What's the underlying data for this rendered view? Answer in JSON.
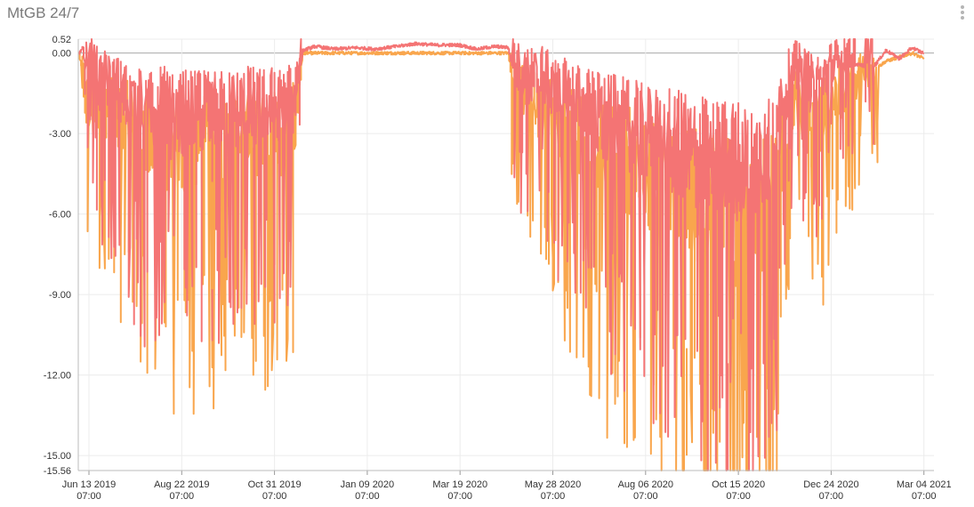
{
  "header": {
    "title": "MtGB 24/7",
    "menu_icon": "more-vertical-icon"
  },
  "chart_data": {
    "type": "line",
    "title": "MtGB 24/7",
    "xlabel": "",
    "ylabel": "",
    "ylim": [
      -15.56,
      0.52
    ],
    "grid": true,
    "legend": "none",
    "y_ticks": [
      "0.52",
      "0.00",
      "-3.00",
      "-6.00",
      "-9.00",
      "-12.00",
      "-15.00",
      "-15.56"
    ],
    "y_tick_values": [
      0.52,
      0.0,
      -3.0,
      -6.0,
      -9.0,
      -12.0,
      -15.0,
      -15.56
    ],
    "x_ticks": [
      {
        "date": "Jun 13 2019",
        "time": "07:00"
      },
      {
        "date": "Aug 22 2019",
        "time": "07:00"
      },
      {
        "date": "Oct 31 2019",
        "time": "07:00"
      },
      {
        "date": "Jan 09 2020",
        "time": "07:00"
      },
      {
        "date": "Mar 19 2020",
        "time": "07:00"
      },
      {
        "date": "May 28 2020",
        "time": "07:00"
      },
      {
        "date": "Aug 06 2020",
        "time": "07:00"
      },
      {
        "date": "Oct 15 2020",
        "time": "07:00"
      },
      {
        "date": "Dec 24 2020",
        "time": "07:00"
      },
      {
        "date": "Mar 04 2021",
        "time": "07:00"
      }
    ],
    "x_range": [
      "2019-06-06",
      "2021-03-04"
    ],
    "colors": {
      "series_upper": "#f47474",
      "series_lower": "#f9a64d",
      "grid": "#ececec",
      "zero_line": "#aaaaaa"
    },
    "series": [
      {
        "color": "#f47474",
        "points": [
          [
            "2019-06-06",
            0.0
          ],
          [
            "2019-06-09",
            0.2
          ],
          [
            "2019-06-12",
            -1.5
          ],
          [
            "2019-06-16",
            -0.8
          ],
          [
            "2019-06-20",
            -1.9
          ],
          [
            "2019-06-26",
            -2.1
          ],
          [
            "2019-07-03",
            -2.3
          ],
          [
            "2019-07-10",
            -2.5
          ],
          [
            "2019-07-18",
            -3.0
          ],
          [
            "2019-07-25",
            -3.3
          ],
          [
            "2019-08-01",
            -3.4
          ],
          [
            "2019-08-08",
            -3.0
          ],
          [
            "2019-08-15",
            -3.6
          ],
          [
            "2019-08-22",
            -3.5
          ],
          [
            "2019-09-01",
            -3.3
          ],
          [
            "2019-09-10",
            -3.5
          ],
          [
            "2019-09-20",
            -3.4
          ],
          [
            "2019-10-01",
            -3.2
          ],
          [
            "2019-10-10",
            -3.0
          ],
          [
            "2019-10-20",
            -3.2
          ],
          [
            "2019-10-31",
            -3.0
          ],
          [
            "2019-11-07",
            -3.2
          ],
          [
            "2019-11-14",
            -3.0
          ],
          [
            "2019-11-18",
            -1.5
          ],
          [
            "2019-11-22",
            0.1
          ],
          [
            "2019-12-01",
            0.25
          ],
          [
            "2019-12-15",
            0.15
          ],
          [
            "2020-01-01",
            0.2
          ],
          [
            "2020-01-15",
            0.15
          ],
          [
            "2020-02-01",
            0.25
          ],
          [
            "2020-02-15",
            0.35
          ],
          [
            "2020-03-01",
            0.3
          ],
          [
            "2020-03-19",
            0.3
          ],
          [
            "2020-04-01",
            0.15
          ],
          [
            "2020-04-15",
            0.25
          ],
          [
            "2020-04-25",
            0.2
          ],
          [
            "2020-05-01",
            -1.2
          ],
          [
            "2020-05-10",
            -1.8
          ],
          [
            "2020-05-20",
            -1.5
          ],
          [
            "2020-05-28",
            -2.3
          ],
          [
            "2020-06-08",
            -2.6
          ],
          [
            "2020-06-20",
            -3.0
          ],
          [
            "2020-07-01",
            -3.4
          ],
          [
            "2020-07-15",
            -3.8
          ],
          [
            "2020-07-25",
            -4.0
          ],
          [
            "2020-08-06",
            -4.4
          ],
          [
            "2020-08-16",
            -4.6
          ],
          [
            "2020-08-26",
            -4.8
          ],
          [
            "2020-09-06",
            -5.0
          ],
          [
            "2020-09-16",
            -5.2
          ],
          [
            "2020-09-26",
            -5.4
          ],
          [
            "2020-10-06",
            -5.2
          ],
          [
            "2020-10-15",
            -5.6
          ],
          [
            "2020-10-25",
            -5.5
          ],
          [
            "2020-11-04",
            -5.2
          ],
          [
            "2020-11-12",
            -4.8
          ],
          [
            "2020-11-20",
            -2.5
          ],
          [
            "2020-11-26",
            -1.2
          ],
          [
            "2020-12-04",
            -1.6
          ],
          [
            "2020-12-12",
            -2.5
          ],
          [
            "2020-12-24",
            -1.3
          ],
          [
            "2021-01-04",
            -0.8
          ],
          [
            "2021-01-14",
            -0.4
          ],
          [
            "2021-01-24",
            -0.6
          ],
          [
            "2021-02-04",
            0.1
          ],
          [
            "2021-02-14",
            -0.2
          ],
          [
            "2021-02-24",
            0.2
          ],
          [
            "2021-03-04",
            0.0
          ]
        ]
      },
      {
        "color": "#f9a64d",
        "points": [
          [
            "2019-06-06",
            0.0
          ],
          [
            "2019-06-12",
            -2.2
          ],
          [
            "2019-06-20",
            -2.4
          ],
          [
            "2019-07-03",
            -2.6
          ],
          [
            "2019-07-18",
            -3.3
          ],
          [
            "2019-08-01",
            -3.8
          ],
          [
            "2019-08-15",
            -4.2
          ],
          [
            "2019-09-01",
            -4.0
          ],
          [
            "2019-09-20",
            -4.1
          ],
          [
            "2019-10-10",
            -3.8
          ],
          [
            "2019-10-31",
            -3.7
          ],
          [
            "2019-11-14",
            -3.6
          ],
          [
            "2019-11-18",
            -1.8
          ],
          [
            "2019-11-22",
            0.0
          ],
          [
            "2019-12-15",
            0.0
          ],
          [
            "2020-02-01",
            0.0
          ],
          [
            "2020-03-19",
            0.0
          ],
          [
            "2020-04-25",
            0.0
          ],
          [
            "2020-05-01",
            -1.6
          ],
          [
            "2020-05-28",
            -2.8
          ],
          [
            "2020-06-20",
            -3.6
          ],
          [
            "2020-07-15",
            -4.6
          ],
          [
            "2020-08-06",
            -5.4
          ],
          [
            "2020-08-26",
            -6.0
          ],
          [
            "2020-09-16",
            -6.4
          ],
          [
            "2020-10-06",
            -6.8
          ],
          [
            "2020-10-15",
            -7.2
          ],
          [
            "2020-10-25",
            -7.0
          ],
          [
            "2020-11-12",
            -6.2
          ],
          [
            "2020-11-20",
            -3.5
          ],
          [
            "2020-11-26",
            -2.0
          ],
          [
            "2020-12-12",
            -3.6
          ],
          [
            "2020-12-24",
            -2.2
          ],
          [
            "2021-01-14",
            -1.0
          ],
          [
            "2021-02-04",
            -0.3
          ],
          [
            "2021-02-24",
            0.0
          ],
          [
            "2021-03-04",
            -0.2
          ]
        ]
      }
    ],
    "annotations": {
      "min_points": [
        {
          "date": "2019-09-14",
          "value": -8.8
        },
        {
          "date": "2020-08-28",
          "value": -13.6
        },
        {
          "date": "2020-09-06",
          "value": -15.0
        },
        {
          "date": "2020-10-07",
          "value": -15.56
        }
      ]
    }
  }
}
